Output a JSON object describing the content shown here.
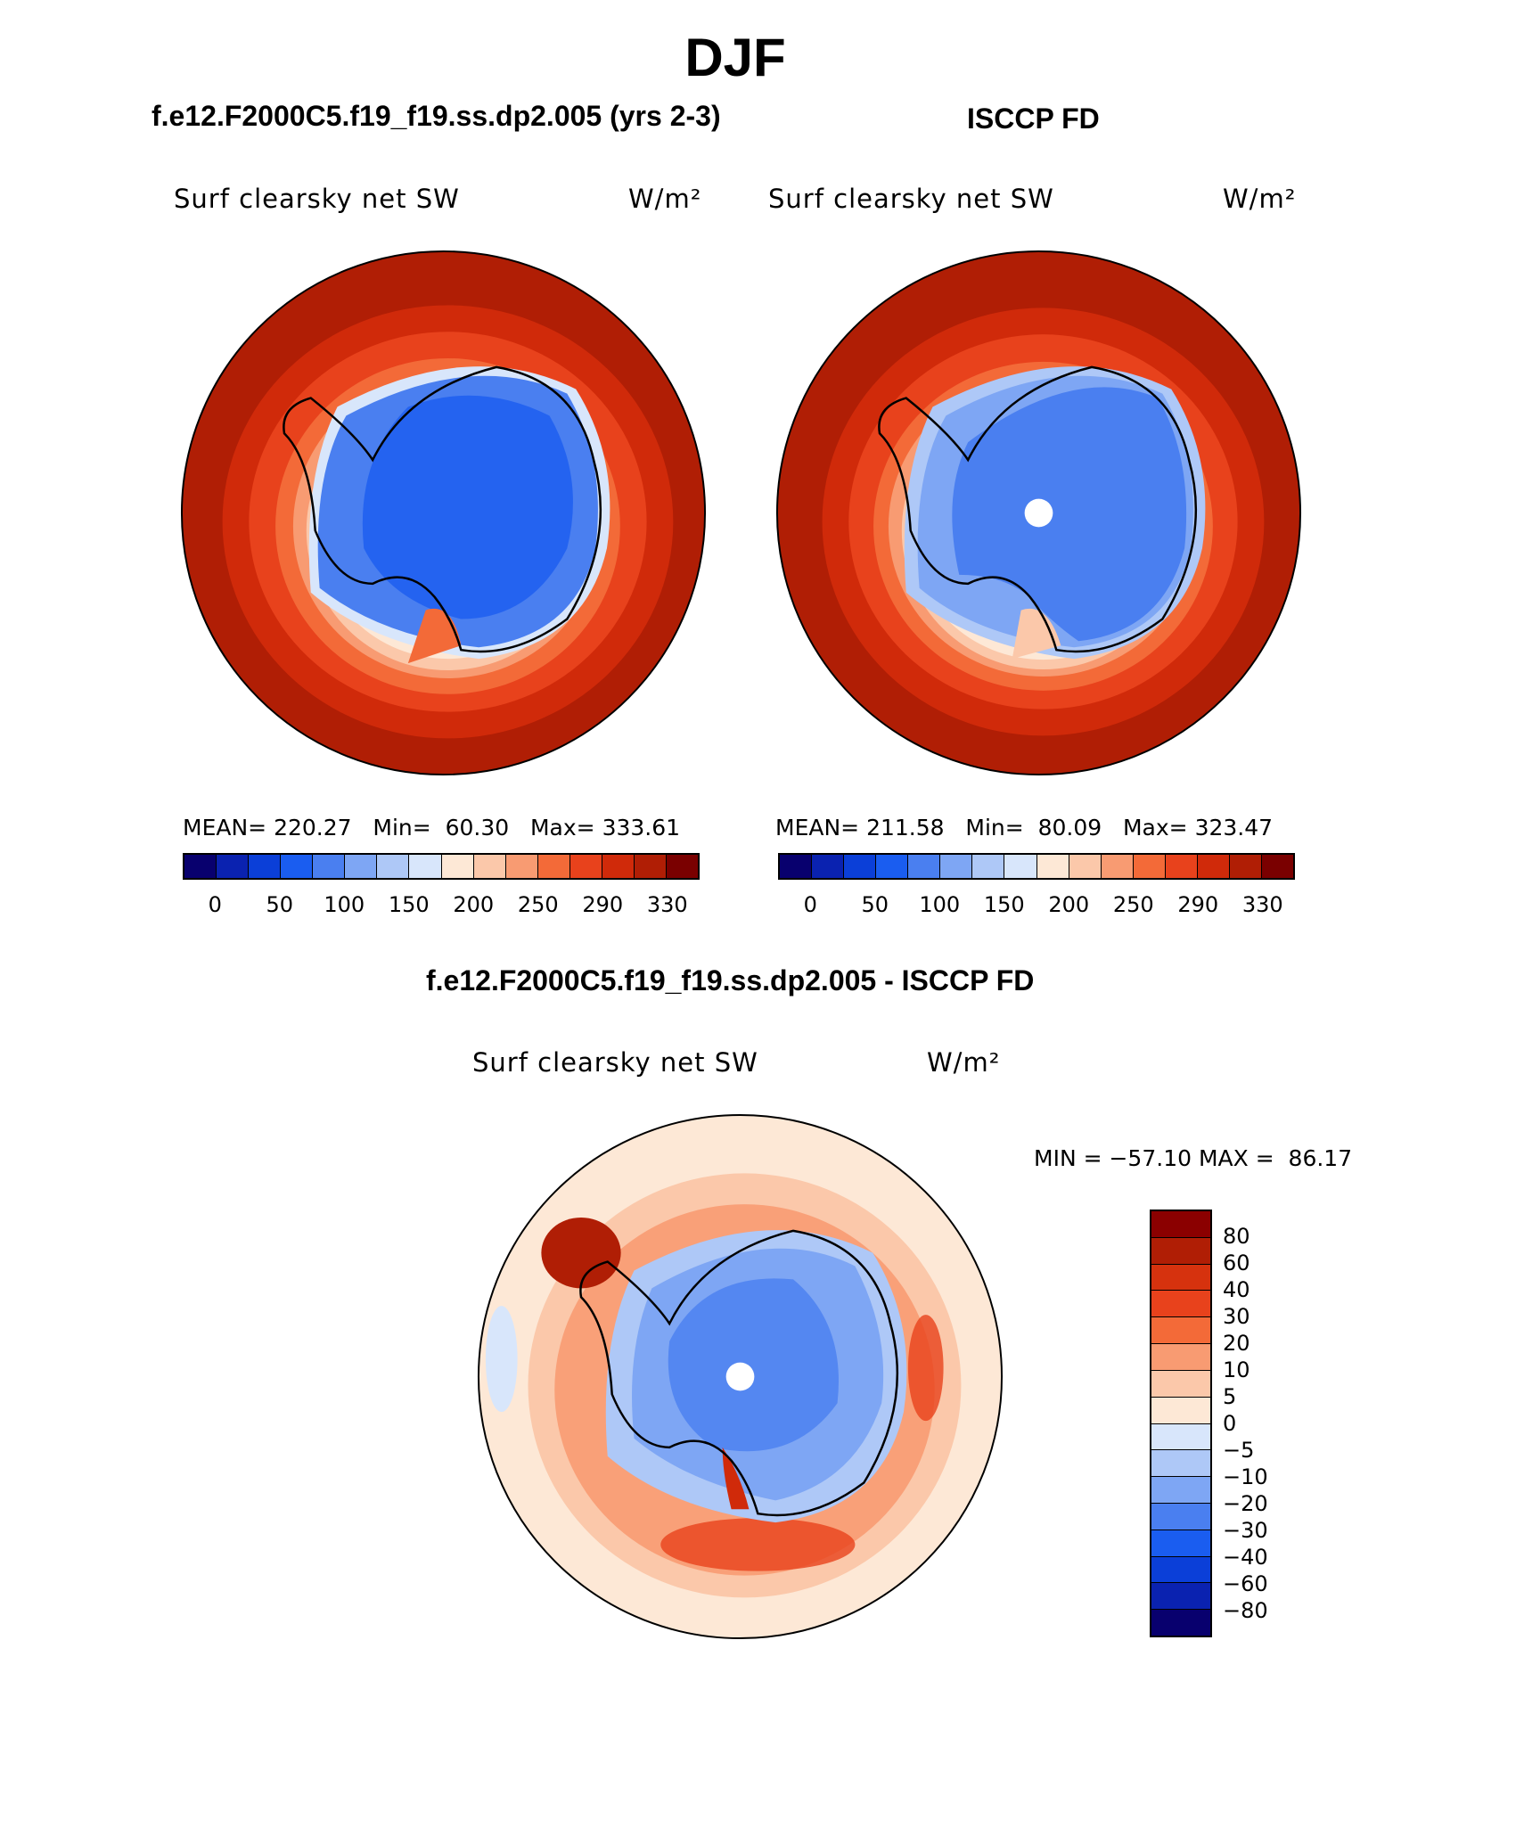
{
  "title": "DJF",
  "panels": [
    {
      "name": "model",
      "title": "f.e12.F2000C5.f19_f19.ss.dp2.005 (yrs 2-3)",
      "variable": "Surf clearsky net SW",
      "units": "W/m²",
      "stats": "MEAN= 220.27   Min=  60.30   Max= 333.61",
      "south_pole_hole": false
    },
    {
      "name": "obs",
      "title": "ISCCP FD",
      "variable": "Surf clearsky net SW",
      "units": "W/m²",
      "stats": "MEAN= 211.58   Min=  80.09   Max= 323.47",
      "south_pole_hole": true
    }
  ],
  "colorbar_abs": {
    "labels": [
      "0",
      "50",
      "100",
      "150",
      "200",
      "250",
      "290",
      "330"
    ],
    "colors": [
      "#08006e",
      "#0a22b0",
      "#0b3fd8",
      "#1a5df0",
      "#4a7ff0",
      "#7ea6f4",
      "#aec8f7",
      "#d8e6fb",
      "#fde8d6",
      "#fbc8aa",
      "#f89b72",
      "#f36a38",
      "#e8421c",
      "#d02a0a",
      "#b01e05",
      "#7a0000"
    ]
  },
  "difference": {
    "title": "f.e12.F2000C5.f19_f19.ss.dp2.005 - ISCCP FD",
    "variable": "Surf clearsky net SW",
    "units": "W/m²",
    "stats": "MIN = −57.10 MAX =  86.17",
    "colorbar_labels": [
      "80",
      "60",
      "40",
      "30",
      "20",
      "10",
      "5",
      "0",
      "−5",
      "−10",
      "−20",
      "−30",
      "−40",
      "−60",
      "−80"
    ],
    "colors": [
      "#8b0000",
      "#b01e05",
      "#d6320e",
      "#e8421c",
      "#f36a38",
      "#f89b72",
      "#fbc8aa",
      "#fde8d6",
      "#d8e6fb",
      "#aec8f7",
      "#7ea6f4",
      "#4a7ff0",
      "#1a5df0",
      "#0b3fd8",
      "#0a22b0",
      "#08006e"
    ]
  }
}
